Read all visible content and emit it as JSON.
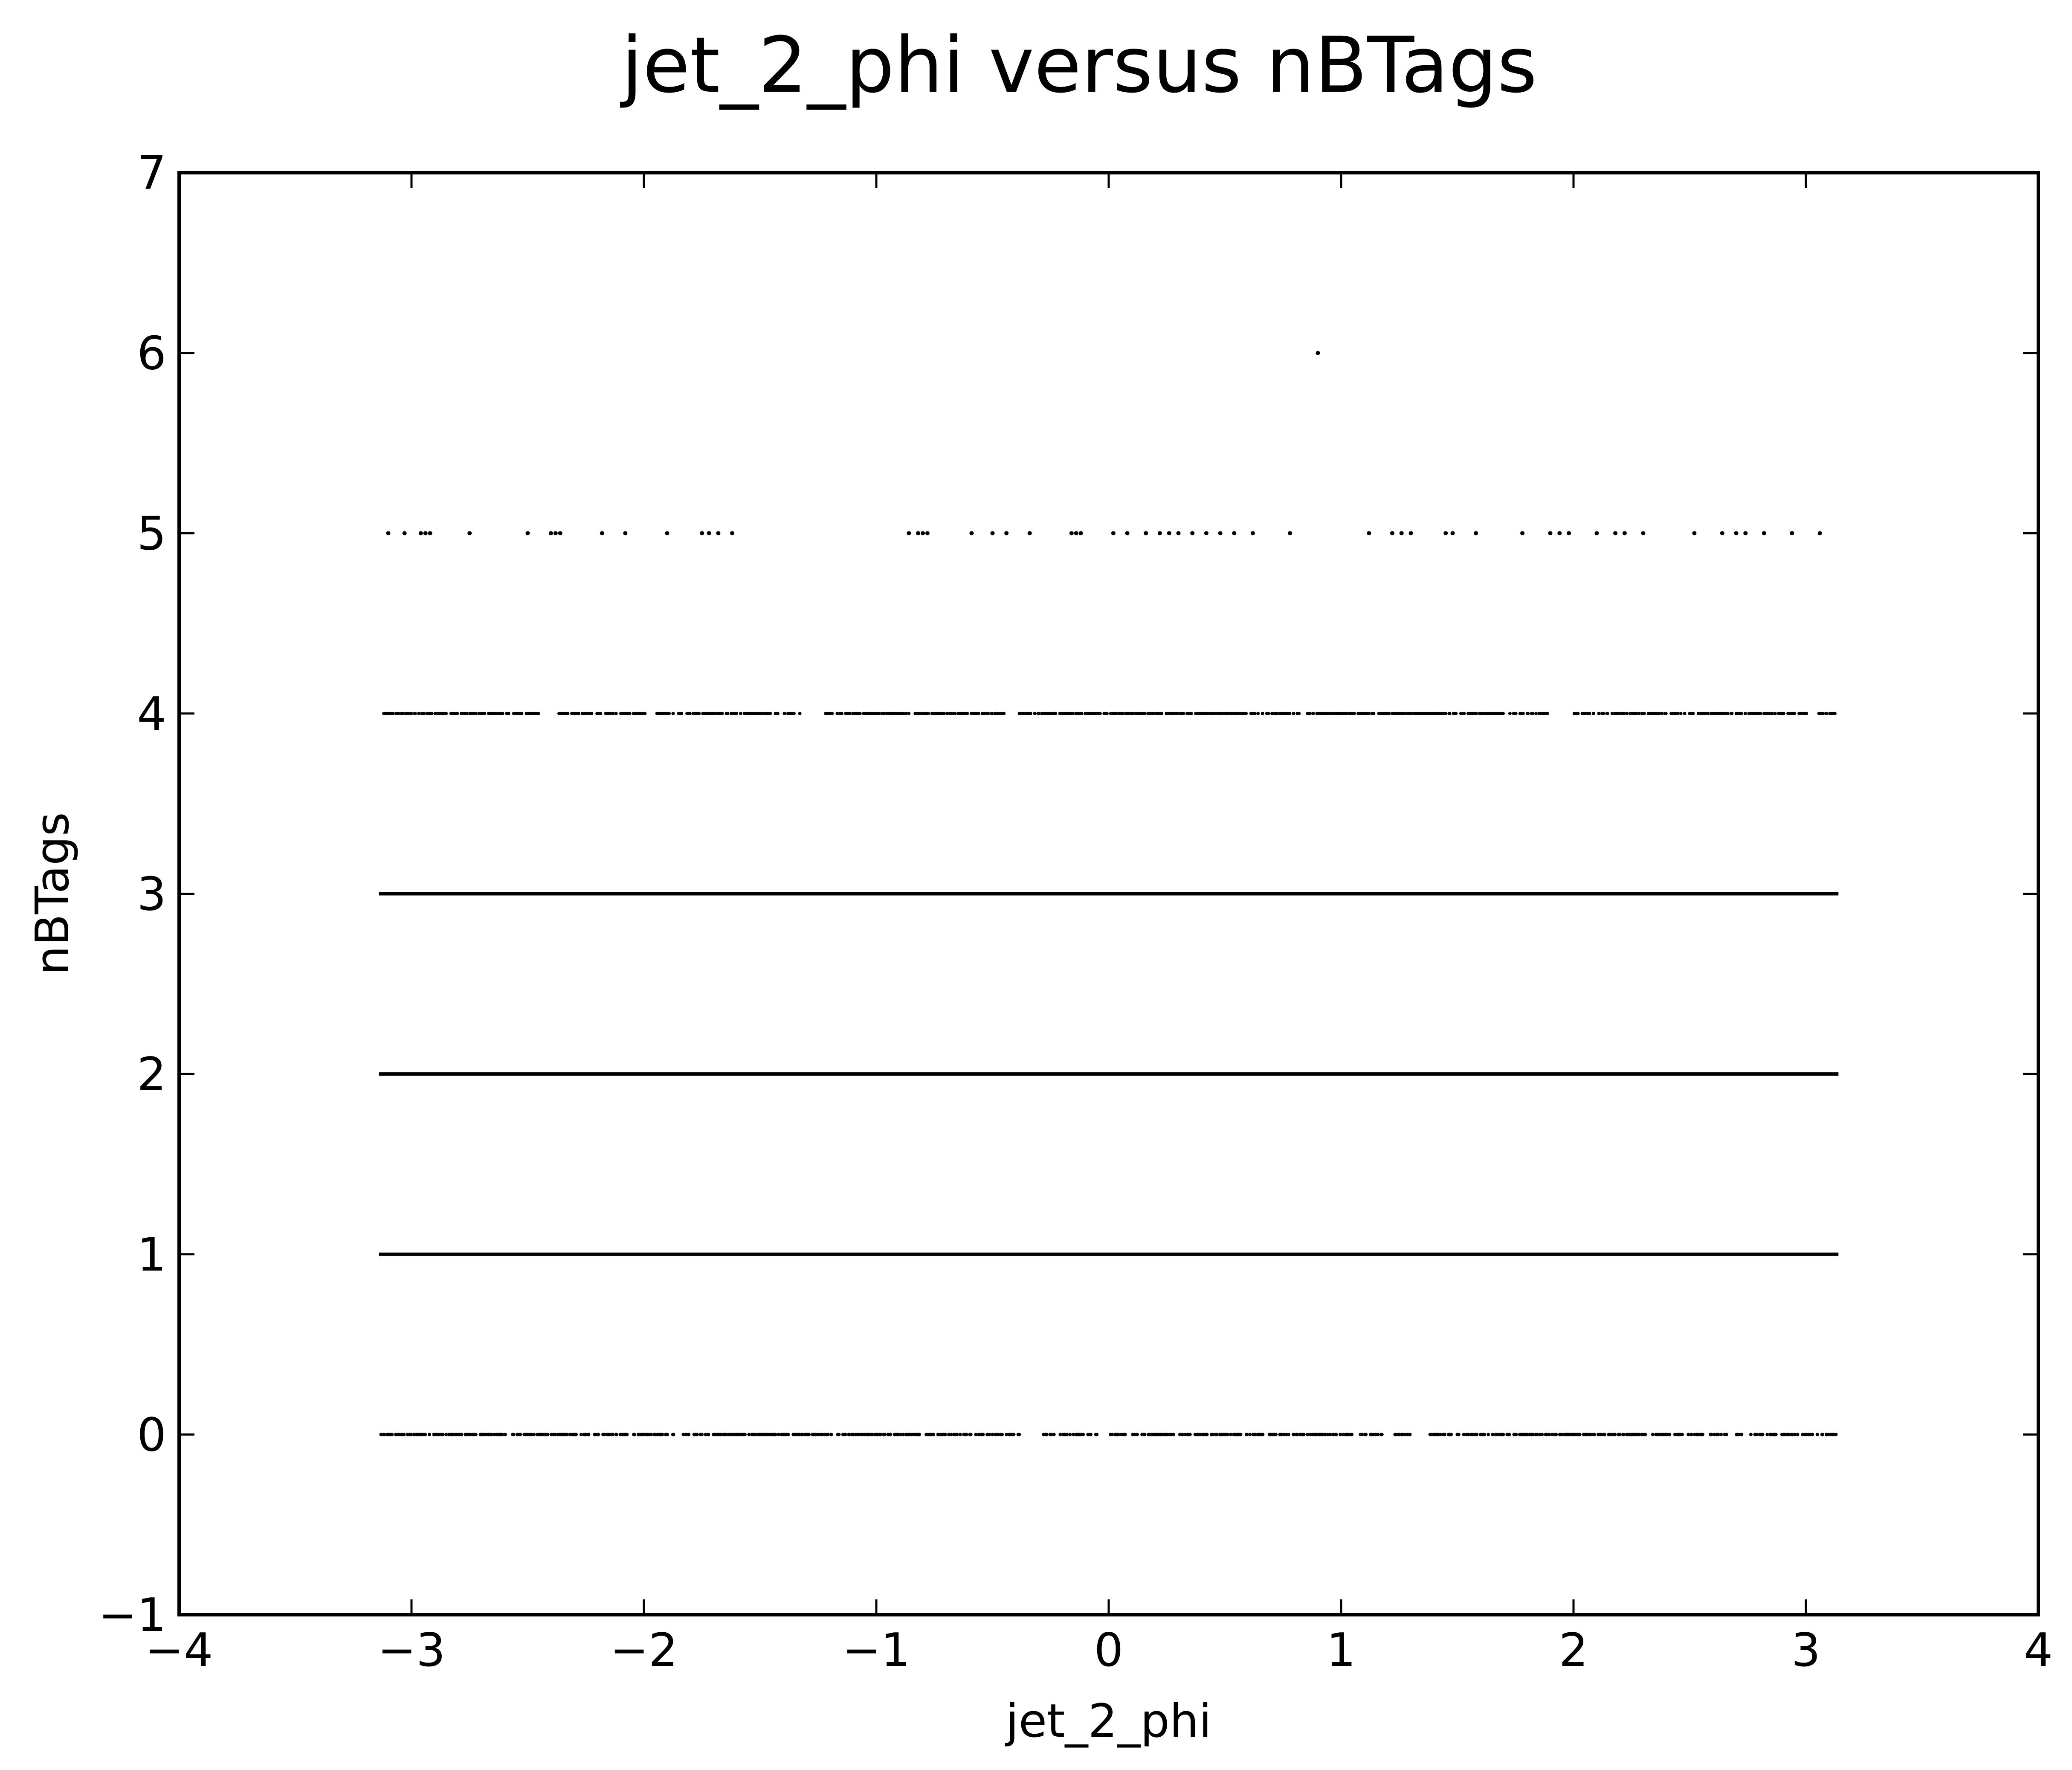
{
  "chart_data": {
    "type": "scatter",
    "title": "jet_2_phi versus nBTags",
    "xlabel": "jet_2_phi",
    "ylabel": "nBTags",
    "xlim": [
      -4,
      4
    ],
    "ylim": [
      -1,
      7
    ],
    "xticks": [
      -4,
      -3,
      -2,
      -1,
      0,
      1,
      2,
      3,
      4
    ],
    "yticks": [
      -1,
      0,
      1,
      2,
      3,
      4,
      5,
      6,
      7
    ],
    "xtick_labels": [
      "−4",
      "−3",
      "−2",
      "−1",
      "0",
      "1",
      "2",
      "3",
      "4"
    ],
    "ytick_labels": [
      "−1",
      "0",
      "1",
      "2",
      "3",
      "4",
      "5",
      "6",
      "7"
    ],
    "grid": false,
    "marker_color": "#000000",
    "series": [
      {
        "y": 0,
        "density": "medium",
        "x_range": [
          -3.13,
          3.13
        ],
        "gaps": [
          [
            -0.38,
            -0.3
          ],
          [
            -0.05,
            0.0
          ],
          [
            0.3,
            0.28
          ],
          [
            1.18,
            1.22
          ],
          [
            1.3,
            1.38
          ],
          [
            2.66,
            2.7
          ]
        ]
      },
      {
        "y": 1,
        "density": "dense",
        "x_range": [
          -3.14,
          3.14
        ],
        "gaps": []
      },
      {
        "y": 2,
        "density": "dense",
        "x_range": [
          -3.14,
          3.14
        ],
        "gaps": []
      },
      {
        "y": 3,
        "density": "dense",
        "x_range": [
          -3.14,
          3.14
        ],
        "gaps": []
      },
      {
        "y": 4,
        "density": "medium",
        "x_range": [
          -3.12,
          3.13
        ],
        "gaps": [
          [
            -2.45,
            -2.38
          ],
          [
            -1.99,
            -1.95
          ],
          [
            -1.33,
            -1.23
          ],
          [
            -0.45,
            -0.4
          ],
          [
            0.82,
            0.85
          ],
          [
            1.9,
            2.0
          ],
          [
            3.0,
            3.05
          ]
        ]
      },
      {
        "y": 5,
        "density": "sparse",
        "x": [
          -3.1,
          -3.03,
          -2.96,
          -2.94,
          -2.92,
          -2.75,
          -2.5,
          -2.4,
          -2.38,
          -2.36,
          -2.18,
          -2.08,
          -1.9,
          -1.75,
          -1.72,
          -1.68,
          -1.62,
          -0.86,
          -0.82,
          -0.8,
          -0.78,
          -0.59,
          -0.5,
          -0.44,
          -0.34,
          -0.16,
          -0.14,
          -0.12,
          0.02,
          0.08,
          0.16,
          0.22,
          0.26,
          0.3,
          0.36,
          0.42,
          0.48,
          0.54,
          0.62,
          0.78,
          1.12,
          1.22,
          1.26,
          1.3,
          1.45,
          1.48,
          1.58,
          1.78,
          1.9,
          1.94,
          1.98,
          2.1,
          2.18,
          2.22,
          2.3,
          2.52,
          2.64,
          2.7,
          2.74,
          2.82,
          2.94,
          3.06
        ]
      },
      {
        "y": 6,
        "density": "sparse",
        "x": [
          0.9
        ]
      }
    ]
  }
}
